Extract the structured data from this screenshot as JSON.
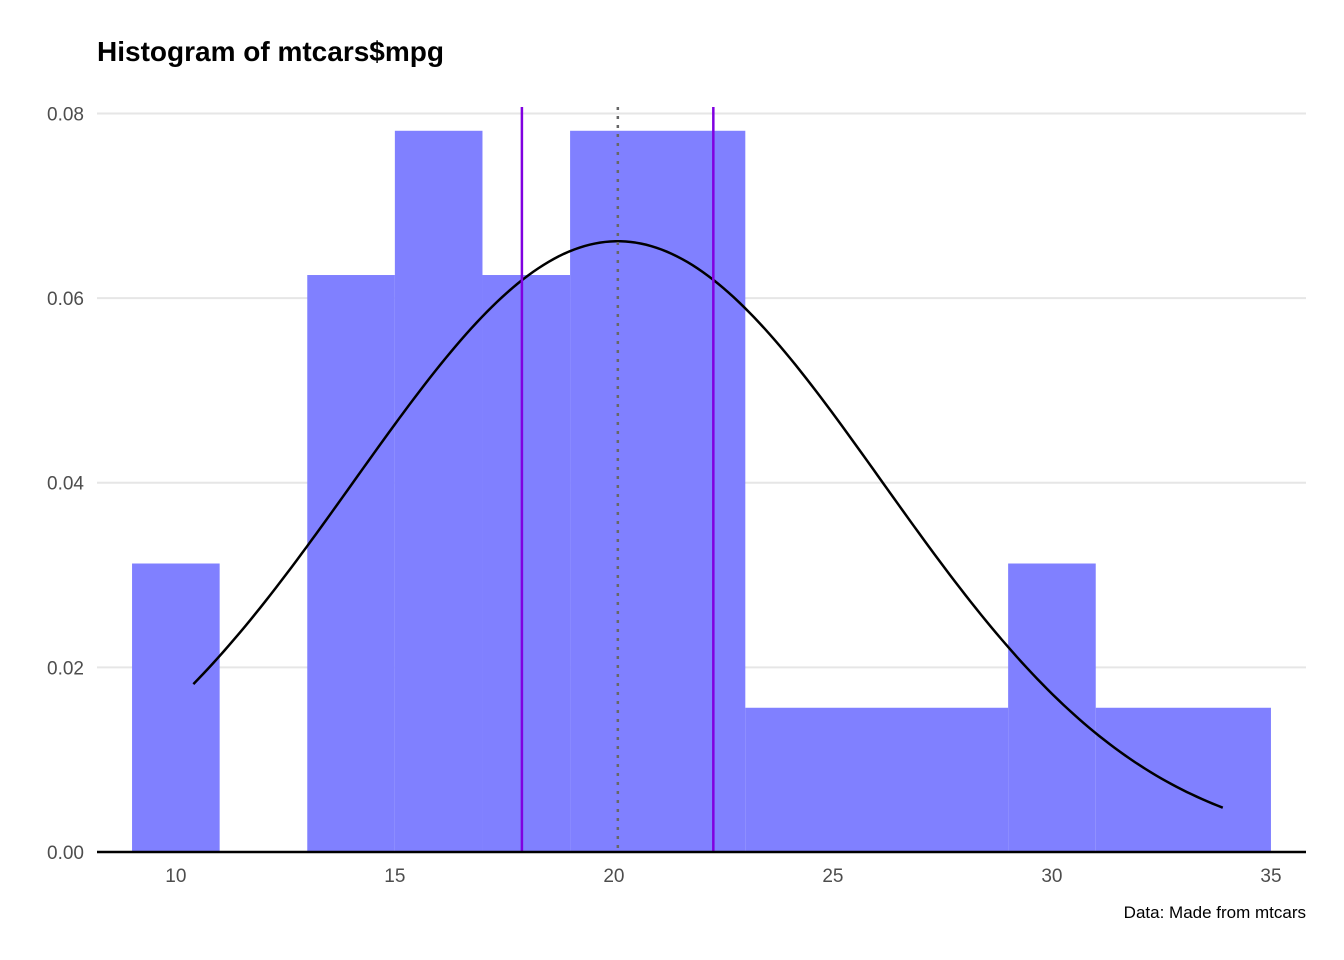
{
  "chart_data": {
    "type": "bar",
    "title": "Histogram of mtcars$mpg",
    "caption": "Data: Made from mtcars",
    "xlabel": "",
    "ylabel": "",
    "xlim": [
      8.2,
      35.8
    ],
    "ylim": [
      0,
      0.082
    ],
    "x_ticks": [
      10,
      15,
      20,
      25,
      30,
      35
    ],
    "x_tick_labels": [
      "10",
      "15",
      "20",
      "25",
      "30",
      "35"
    ],
    "y_ticks": [
      0,
      0.02,
      0.04,
      0.06,
      0.08
    ],
    "y_tick_labels": [
      "0.00",
      "0.02",
      "0.04",
      "0.06",
      "0.08"
    ],
    "grid": "horizontal",
    "bars": [
      {
        "x0": 9,
        "x1": 11,
        "density": 0.03125
      },
      {
        "x0": 11,
        "x1": 13,
        "density": 0
      },
      {
        "x0": 13,
        "x1": 15,
        "density": 0.0625
      },
      {
        "x0": 15,
        "x1": 17,
        "density": 0.078125
      },
      {
        "x0": 17,
        "x1": 19,
        "density": 0.0625
      },
      {
        "x0": 19,
        "x1": 23,
        "density": 0.078125
      },
      {
        "x0": 23,
        "x1": 29,
        "density": 0.015625
      },
      {
        "x0": 29,
        "x1": 31,
        "density": 0.03125
      },
      {
        "x0": 31,
        "x1": 35,
        "density": 0.015625
      }
    ],
    "bar_color": "#8080ff",
    "normal_curve": {
      "mean": 20.09,
      "sd": 6.03,
      "from": 10.4,
      "to": 33.9,
      "color": "#000000"
    },
    "vlines": [
      {
        "x": 17.9,
        "style": "solid",
        "color": "#8000e0"
      },
      {
        "x": 22.27,
        "style": "solid",
        "color": "#8000e0"
      },
      {
        "x": 20.09,
        "style": "dotted",
        "color": "#666666"
      }
    ],
    "baseline_color": "#000000",
    "grid_color": "#e6e6e6"
  }
}
